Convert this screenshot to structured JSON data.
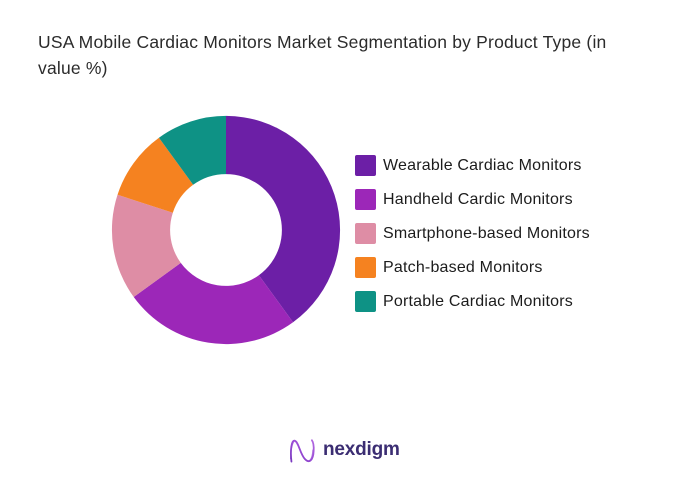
{
  "chart_data": {
    "type": "pie",
    "subtype": "donut",
    "title": "USA Mobile Cardiac Monitors Market Segmentation by Product Type (in value %)",
    "categories": [
      "Wearable Cardiac Monitors",
      "Handheld Cardic Monitors",
      "Smartphone-based Monitors",
      "Patch-based Monitors",
      "Portable Cardiac Monitors"
    ],
    "values": [
      40,
      25,
      15,
      10,
      10
    ],
    "unit": "%",
    "colors": [
      "#6C1FA6",
      "#9C27B8",
      "#DE8DA5",
      "#F58220",
      "#0E9285"
    ],
    "start_angle_deg": 0,
    "direction": "clockwise",
    "inner_radius_ratio": 0.49,
    "legend_position": "right",
    "data_labels_shown": false
  },
  "branding": {
    "logo_text": "nexdigm",
    "logo_color": "#3b2d72",
    "glyph_color_start": "#9b4dd6",
    "glyph_color_end": "#6a2fb5"
  }
}
